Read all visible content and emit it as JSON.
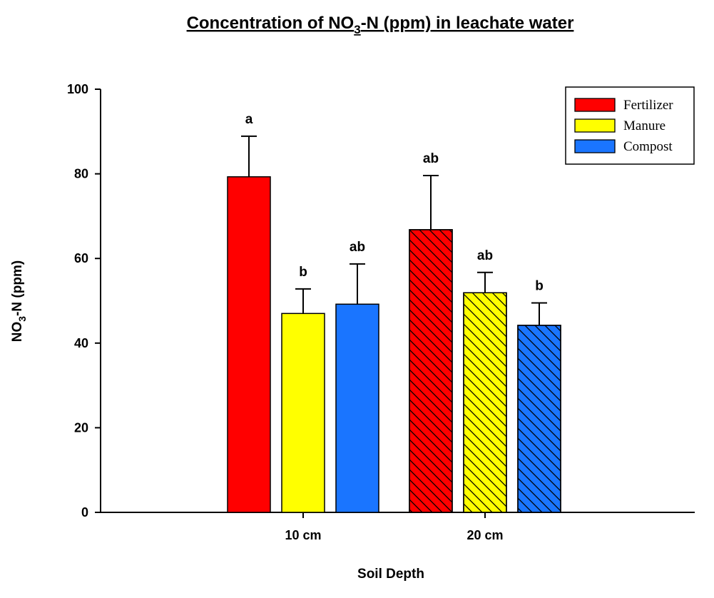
{
  "chart_data": {
    "type": "bar",
    "title": "Concentration of NO",
    "title_sub": "3",
    "title_rest": "-N (ppm) in leachate water",
    "xlabel": "Soil Depth",
    "ylabel_main": "NO",
    "ylabel_sub": "3",
    "ylabel_rest": "-N (ppm)",
    "ylim": [
      0,
      100
    ],
    "yticks": [
      "0",
      "20",
      "40",
      "60",
      "80",
      "100"
    ],
    "categories": [
      "10 cm",
      "20 cm"
    ],
    "hatched_categories": [
      false,
      true
    ],
    "legend_position": "top-right",
    "grid": false,
    "series": [
      {
        "name": "Fertilizer",
        "color": "#ff0000",
        "values": [
          79.3,
          66.8
        ],
        "errors": [
          9.6,
          12.8
        ],
        "letters": [
          "a",
          "ab"
        ]
      },
      {
        "name": "Manure",
        "color": "#ffff00",
        "values": [
          47.0,
          51.9
        ],
        "errors": [
          5.8,
          4.8
        ],
        "letters": [
          "b",
          "ab"
        ]
      },
      {
        "name": "Compost",
        "color": "#1a75ff",
        "values": [
          49.2,
          44.2
        ],
        "errors": [
          9.5,
          5.3
        ],
        "letters": [
          "ab",
          "b"
        ]
      }
    ]
  }
}
